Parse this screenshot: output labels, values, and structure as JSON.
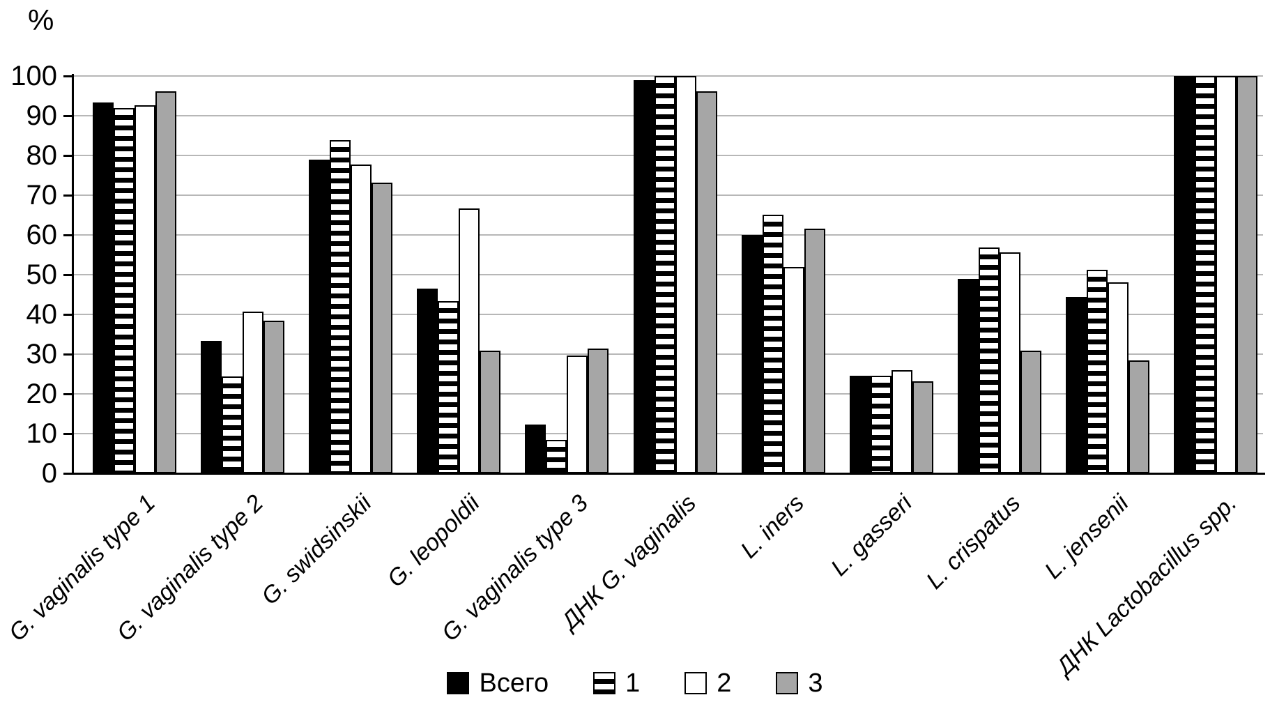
{
  "chart_data": {
    "type": "bar",
    "title": "",
    "ylabel": "%",
    "xlabel": "",
    "ylim": [
      0,
      100
    ],
    "yticks": [
      0,
      10,
      20,
      30,
      40,
      50,
      60,
      70,
      80,
      90,
      100
    ],
    "grid": true,
    "legend_position": "bottom",
    "categories": [
      "G. vaginalis type 1",
      "G. vaginalis type 2",
      "G. swidsinskii",
      "G. leopoldii",
      "G. vaginalis type 3",
      "ДНК G. vaginalis",
      "L. iners",
      "L. gasseri",
      "L. crispatus",
      "L. jensenii",
      "ДНК Lactobacillus spp."
    ],
    "series": [
      {
        "name": "Всего",
        "fill": "black",
        "values": [
          93.3,
          33.3,
          79.0,
          46.5,
          12.2,
          98.9,
          60.0,
          24.5,
          48.9,
          44.4,
          100
        ]
      },
      {
        "name": "1",
        "fill": "stripes",
        "values": [
          92.0,
          24.4,
          83.9,
          43.3,
          8.4,
          100,
          65.0,
          24.5,
          56.9,
          51.3,
          100
        ]
      },
      {
        "name": "2",
        "fill": "white",
        "values": [
          92.6,
          40.7,
          77.8,
          66.7,
          29.6,
          100,
          52.0,
          26.0,
          55.6,
          48.1,
          100
        ]
      },
      {
        "name": "3",
        "fill": "gray",
        "values": [
          96.2,
          38.5,
          73.1,
          30.8,
          31.4,
          96.2,
          61.5,
          23.1,
          30.8,
          28.4,
          100
        ]
      }
    ],
    "colors": {
      "black": "#000000",
      "white": "#ffffff",
      "gray": "#a6a6a6",
      "border": "#000000",
      "gridline": "#b7b7b7"
    }
  }
}
